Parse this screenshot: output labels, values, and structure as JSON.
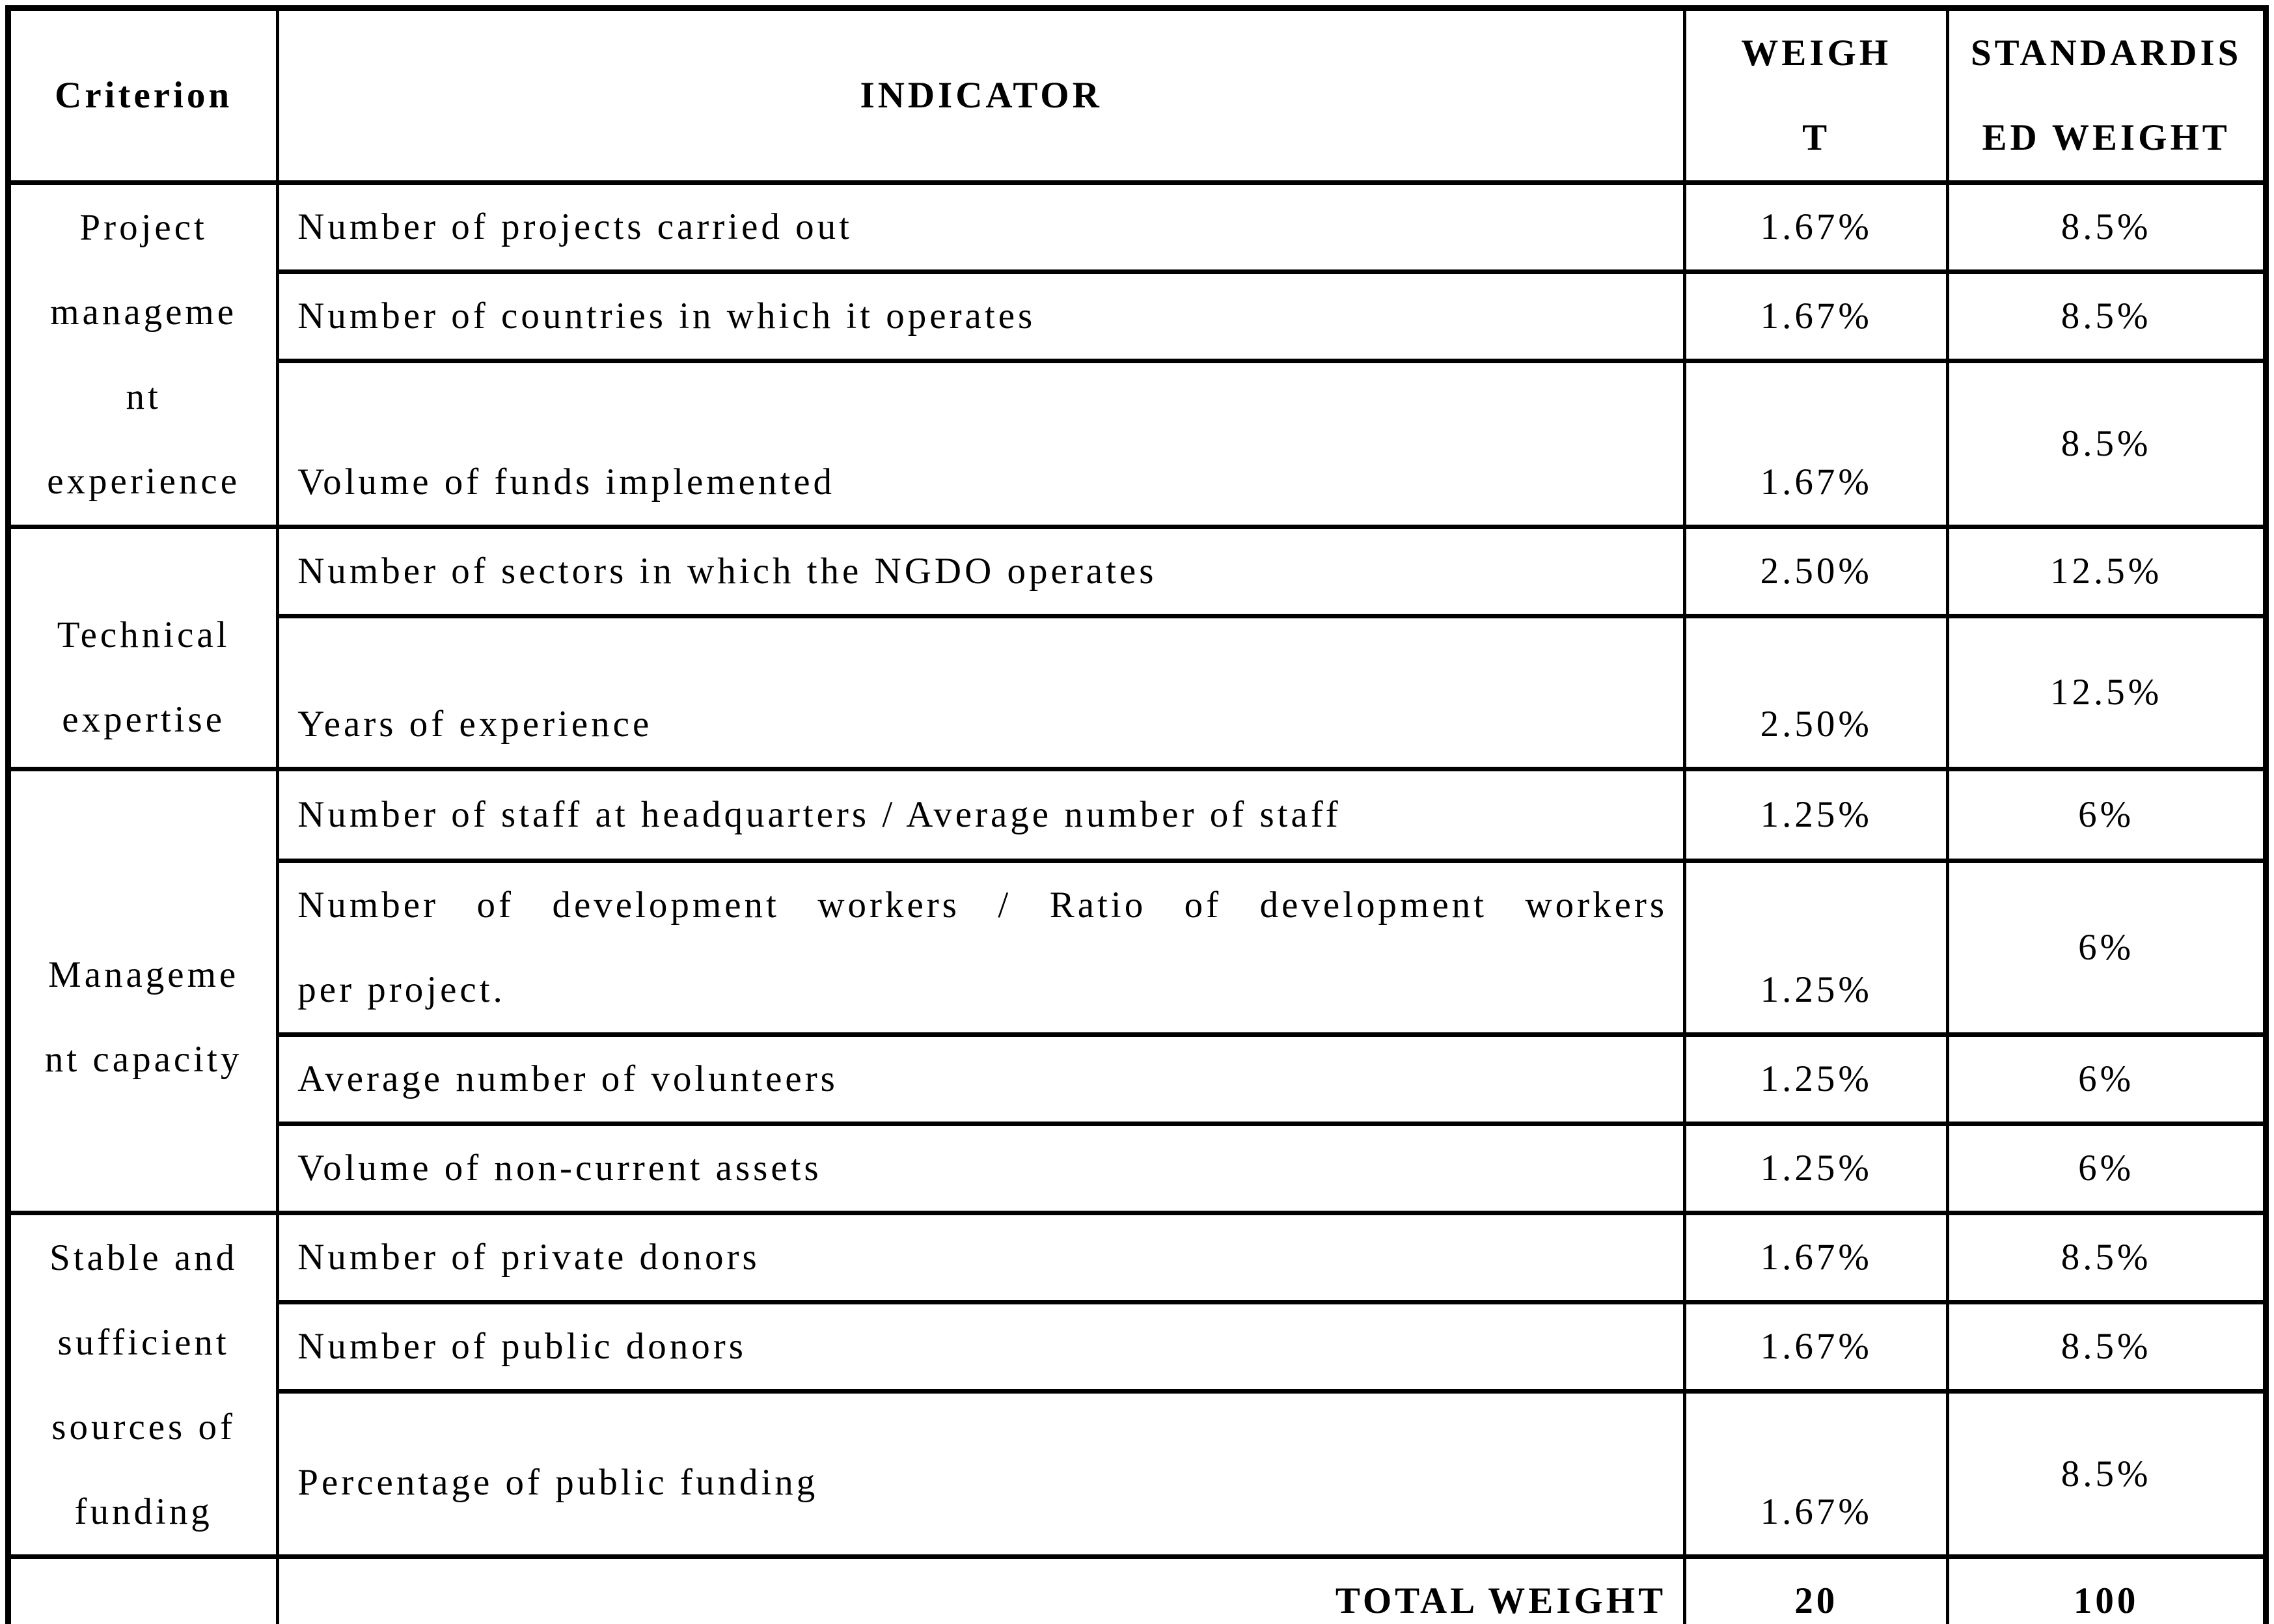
{
  "page": {
    "background": "#ffffff",
    "text_color": "#000000",
    "border_color": "#000000"
  },
  "table": {
    "header": {
      "criterion": "Criterion",
      "indicator": "INDICATOR",
      "weight": "WEIGH\nT",
      "standardised_weight": "STANDARDIS\nED WEIGHT"
    },
    "groups": [
      {
        "criterion": "Project\nmanageme\nnt\nexperience",
        "rows": [
          {
            "indicator": "Number of projects carried out",
            "weight": "1.67%",
            "standardised_weight": "8.5%"
          },
          {
            "indicator": "Number of countries in which it operates",
            "weight": "1.67%",
            "standardised_weight": "8.5%"
          },
          {
            "indicator": "Volume of funds implemented",
            "weight": "1.67%",
            "standardised_weight": "8.5%"
          }
        ]
      },
      {
        "criterion": "Technical\nexpertise",
        "rows": [
          {
            "indicator": "Number of sectors in which the NGDO operates",
            "weight": "2.50%",
            "standardised_weight": "12.5%"
          },
          {
            "indicator": "Years of experience",
            "weight": "2.50%",
            "standardised_weight": "12.5%"
          }
        ]
      },
      {
        "criterion": "Manageme\nnt capacity",
        "rows": [
          {
            "indicator": "Number of staff at headquarters / Average number of staff",
            "weight": "1.25%",
            "standardised_weight": "6%"
          },
          {
            "indicator": "Number of development workers / Ratio of development workers\nper project.",
            "weight": "1.25%",
            "standardised_weight": "6%"
          },
          {
            "indicator": "Average number of volunteers",
            "weight": "1.25%",
            "standardised_weight": "6%"
          },
          {
            "indicator": "Volume of non-current assets",
            "weight": "1.25%",
            "standardised_weight": "6%"
          }
        ]
      },
      {
        "criterion": "Stable and\nsufficient\nsources of\nfunding",
        "rows": [
          {
            "indicator": "Number of private donors",
            "weight": "1.67%",
            "standardised_weight": "8.5%"
          },
          {
            "indicator": "Number of public donors",
            "weight": "1.67%",
            "standardised_weight": "8.5%"
          },
          {
            "indicator": "Percentage of public funding",
            "weight": "1.67%",
            "standardised_weight": "8.5%"
          }
        ]
      }
    ],
    "total": {
      "label": "TOTAL WEIGHT",
      "weight": "20",
      "standardised_weight": "100"
    }
  }
}
